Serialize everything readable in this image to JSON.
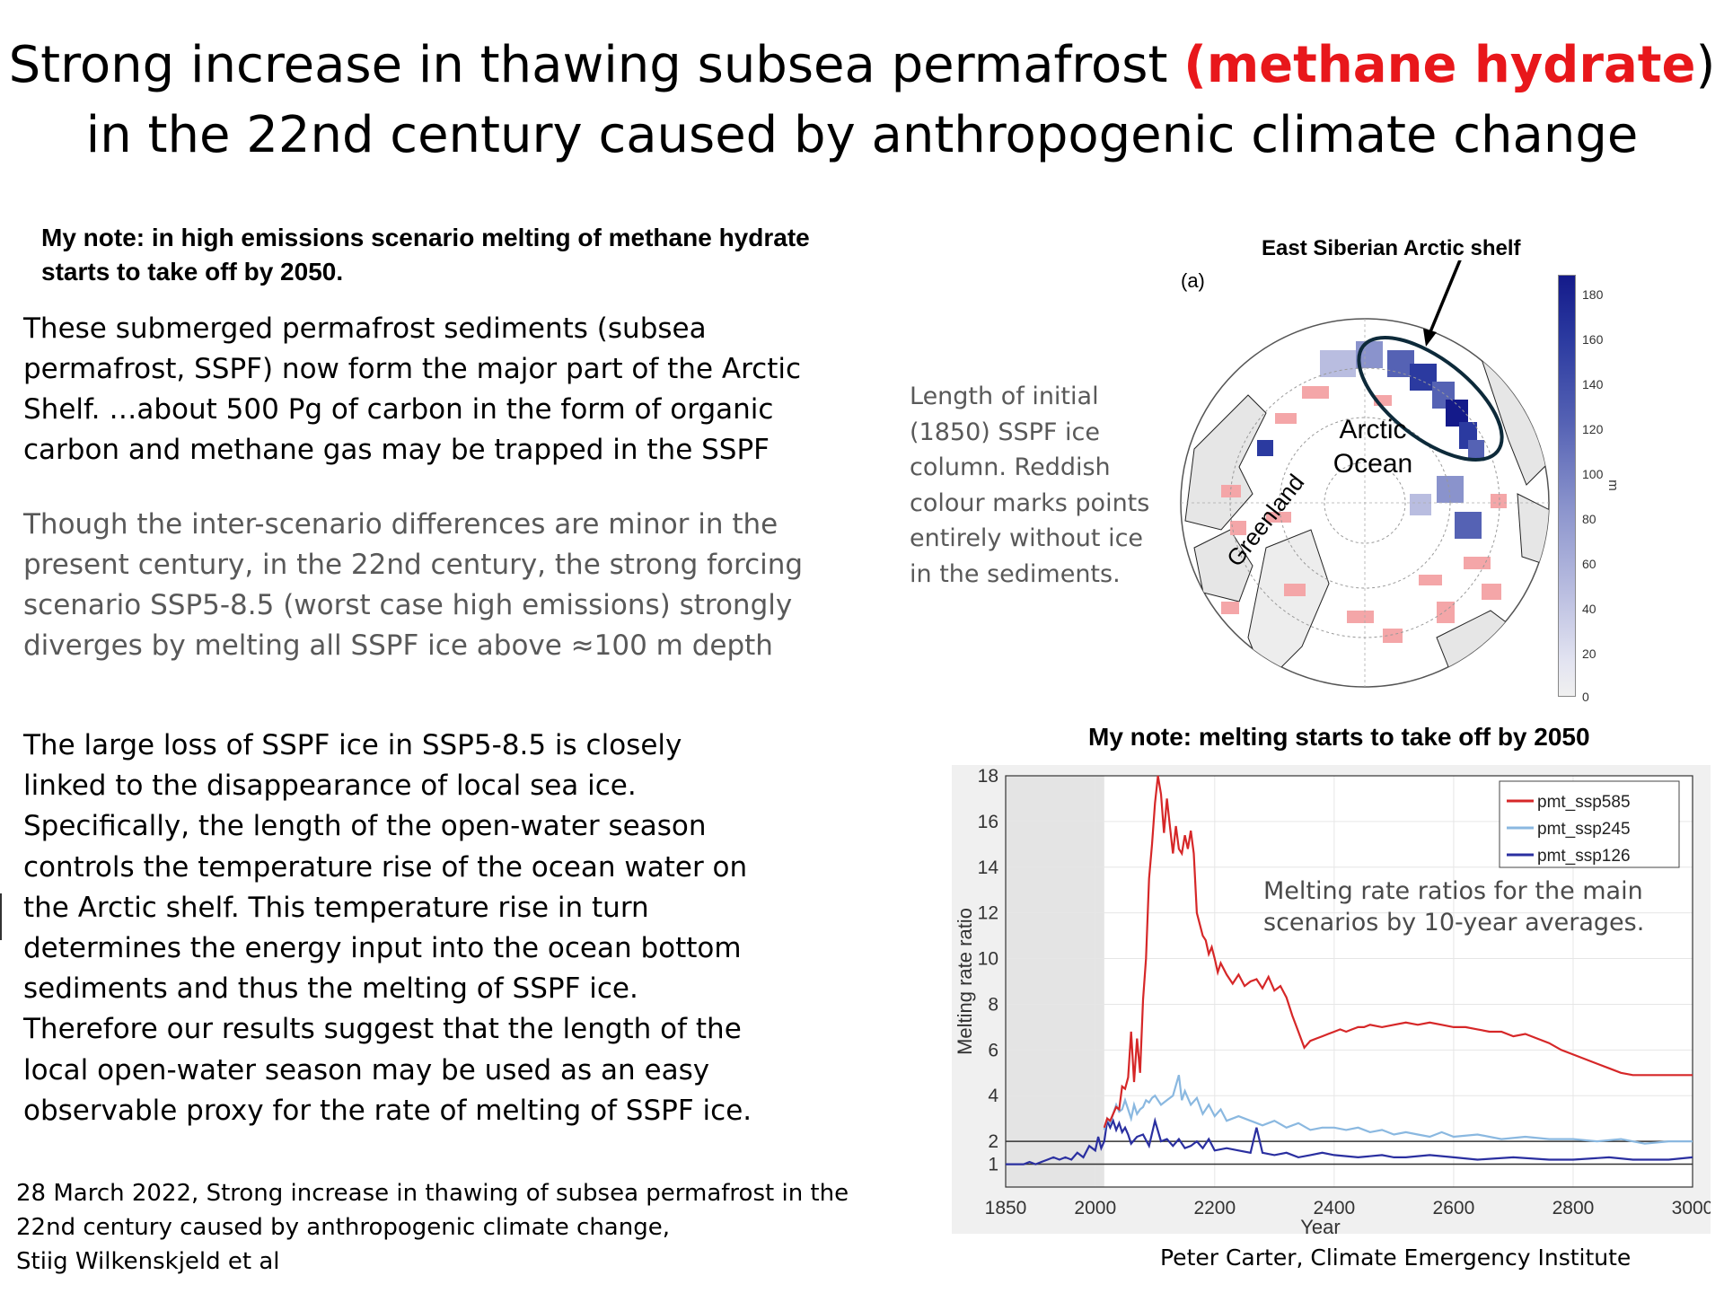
{
  "title": {
    "line1_pre": "Strong increase in thawing subsea permafrost ",
    "line1_highlight": "(methane hydrate",
    "line1_post": ")",
    "line2": "in the 22nd century caused by anthropogenic climate change"
  },
  "notes": {
    "top_note_line1": "My note: in high emissions scenario melting of methane hydrate",
    "top_note_line2": "starts to take off by 2050.",
    "chart_note": "My note: melting starts to take off by 2050"
  },
  "paragraphs": {
    "p1": [
      "These submerged permafrost sediments (subsea",
      "permafrost, SSPF) now form the major part of the Arctic",
      "Shelf. …about 500 Pg of carbon in the form of organic",
      "carbon and methane gas may be trapped in the SSPF"
    ],
    "p2": [
      "Though the inter-scenario differences are minor in the",
      "present century, in the 22nd century, the strong forcing",
      "scenario SSP5-8.5 (worst case high emissions) strongly",
      "diverges by melting all SSPF ice above ≈100 m depth"
    ],
    "p3": [
      "The large loss of SSPF ice in SSP5-8.5 is closely",
      "linked to the disappearance of local sea ice.",
      "Specifically, the length of the open-water season",
      "controls the temperature rise of the ocean water on",
      "the Arctic shelf. This temperature rise in turn",
      "determines the energy input into the ocean bottom",
      "sediments and thus the melting of SSPF ice.",
      "Therefore our results suggest that the length of the",
      "local open-water season may be used as an easy",
      "observable proxy for the rate of melting of SSPF ice."
    ]
  },
  "citation": [
    "28 March 2022, Strong increase in thawing of subsea permafrost in the",
    "22nd century caused by anthropogenic climate change,",
    "Stiig Wilkenskjeld et al"
  ],
  "map": {
    "panel_label": "(a)",
    "callout": "East Siberian Arctic shelf",
    "ocean_label_1": "Arctic",
    "ocean_label_2": "Ocean",
    "greenland": "Greenland",
    "caption": [
      "Length of initial",
      "(1850) SSPF ice",
      "column. Reddish",
      "colour marks points",
      "entirely without ice",
      "in the sediments."
    ],
    "colorbar_ticks": [
      "180",
      "160",
      "140",
      "120",
      "100",
      "80",
      "60",
      "40",
      "20",
      "0"
    ],
    "colorbar_unit": "m",
    "colors": {
      "ice_high": "#141a8a",
      "no_ice": "#f4a6a8",
      "circle_highlight": "#0d2a3a"
    }
  },
  "chart_data": {
    "type": "line",
    "title": "",
    "xlabel": "Year",
    "ylabel": "Melting rate ratio",
    "xlim": [
      1850,
      3000
    ],
    "ylim": [
      0,
      18
    ],
    "xticks": [
      1850,
      2000,
      2200,
      2400,
      2600,
      2800,
      3000
    ],
    "yticks": [
      1,
      2,
      4,
      6,
      8,
      10,
      12,
      14,
      16,
      18
    ],
    "reference_lines": [
      1,
      2
    ],
    "shaded_region": [
      1850,
      2015
    ],
    "annotation": [
      "Melting rate ratios  for the main",
      "scenarios by 10-year averages."
    ],
    "legend_position": "top-right",
    "series": [
      {
        "name": "pmt_ssp585",
        "color": "#d62728",
        "x": [
          2015,
          2020,
          2025,
          2030,
          2035,
          2040,
          2045,
          2050,
          2055,
          2060,
          2065,
          2070,
          2075,
          2080,
          2085,
          2090,
          2095,
          2100,
          2105,
          2110,
          2115,
          2120,
          2125,
          2130,
          2135,
          2140,
          2145,
          2150,
          2155,
          2160,
          2165,
          2170,
          2175,
          2180,
          2185,
          2190,
          2195,
          2200,
          2205,
          2210,
          2220,
          2230,
          2240,
          2250,
          2260,
          2270,
          2280,
          2290,
          2300,
          2310,
          2320,
          2330,
          2340,
          2350,
          2360,
          2370,
          2380,
          2390,
          2400,
          2410,
          2420,
          2430,
          2440,
          2450,
          2460,
          2480,
          2500,
          2520,
          2540,
          2560,
          2580,
          2600,
          2620,
          2640,
          2660,
          2680,
          2700,
          2720,
          2740,
          2760,
          2780,
          2800,
          2820,
          2840,
          2860,
          2880,
          2900,
          2920,
          2940,
          2960,
          2980,
          3000
        ],
        "y": [
          2.6,
          3.0,
          2.9,
          3.2,
          3.5,
          3.4,
          4.4,
          4.3,
          4.8,
          6.8,
          4.6,
          6.5,
          5.0,
          8.2,
          10.0,
          13.5,
          15.0,
          16.8,
          18.0,
          17.2,
          15.5,
          17.0,
          15.8,
          14.6,
          15.8,
          14.8,
          14.6,
          15.4,
          14.8,
          15.6,
          14.6,
          12.0,
          11.5,
          11.0,
          10.8,
          10.2,
          10.5,
          10.0,
          9.4,
          9.8,
          9.3,
          8.9,
          9.3,
          8.8,
          9.0,
          9.1,
          8.7,
          9.2,
          8.6,
          8.8,
          8.3,
          7.5,
          6.8,
          6.1,
          6.4,
          6.5,
          6.6,
          6.7,
          6.8,
          6.9,
          6.8,
          6.9,
          7.0,
          7.0,
          7.1,
          7.0,
          7.1,
          7.2,
          7.1,
          7.2,
          7.1,
          7.0,
          7.0,
          6.9,
          6.8,
          6.8,
          6.6,
          6.7,
          6.5,
          6.3,
          6.0,
          5.8,
          5.6,
          5.4,
          5.2,
          5.0,
          4.9,
          4.9,
          4.9,
          4.9,
          4.9,
          4.9
        ]
      },
      {
        "name": "pmt_ssp245",
        "color": "#8ab8e0",
        "x": [
          2015,
          2020,
          2025,
          2030,
          2035,
          2040,
          2045,
          2050,
          2055,
          2060,
          2065,
          2070,
          2075,
          2080,
          2085,
          2090,
          2095,
          2100,
          2110,
          2120,
          2130,
          2140,
          2145,
          2150,
          2160,
          2170,
          2180,
          2190,
          2200,
          2210,
          2220,
          2240,
          2260,
          2280,
          2300,
          2320,
          2340,
          2360,
          2380,
          2400,
          2420,
          2440,
          2460,
          2480,
          2500,
          2520,
          2540,
          2560,
          2580,
          2600,
          2640,
          2680,
          2720,
          2760,
          2800,
          2840,
          2880,
          2920,
          2960,
          3000
        ],
        "y": [
          2.5,
          3.0,
          2.8,
          3.2,
          3.6,
          3.3,
          3.4,
          3.8,
          3.4,
          3.0,
          3.6,
          3.2,
          3.4,
          3.5,
          3.8,
          3.7,
          3.9,
          4.0,
          3.6,
          3.8,
          4.0,
          4.9,
          3.8,
          4.2,
          3.6,
          3.9,
          3.2,
          3.6,
          3.1,
          3.4,
          2.9,
          3.1,
          2.9,
          2.7,
          2.9,
          2.6,
          2.8,
          2.5,
          2.6,
          2.6,
          2.5,
          2.6,
          2.4,
          2.5,
          2.3,
          2.4,
          2.3,
          2.2,
          2.4,
          2.2,
          2.3,
          2.1,
          2.2,
          2.1,
          2.1,
          2.0,
          2.1,
          1.9,
          2.0,
          2.0
        ]
      },
      {
        "name": "pmt_ssp126",
        "color": "#2a2fa0",
        "x": [
          1850,
          1870,
          1880,
          1890,
          1900,
          1910,
          1920,
          1930,
          1940,
          1950,
          1960,
          1970,
          1980,
          1990,
          2000,
          2005,
          2010,
          2015,
          2020,
          2025,
          2030,
          2035,
          2040,
          2045,
          2050,
          2055,
          2060,
          2070,
          2080,
          2090,
          2100,
          2110,
          2120,
          2130,
          2140,
          2150,
          2160,
          2170,
          2180,
          2190,
          2200,
          2220,
          2240,
          2260,
          2270,
          2280,
          2300,
          2320,
          2340,
          2360,
          2380,
          2400,
          2440,
          2480,
          2500,
          2520,
          2560,
          2600,
          2640,
          2700,
          2760,
          2800,
          2860,
          2900,
          2960,
          3000
        ],
        "y": [
          1.0,
          1.0,
          1.0,
          1.1,
          1.0,
          1.1,
          1.2,
          1.3,
          1.2,
          1.3,
          1.2,
          1.5,
          1.3,
          1.8,
          1.6,
          2.2,
          1.7,
          2.0,
          2.9,
          2.6,
          2.9,
          2.5,
          2.8,
          2.4,
          2.6,
          2.3,
          1.9,
          2.2,
          2.3,
          1.8,
          2.9,
          2.0,
          2.1,
          1.8,
          2.1,
          1.7,
          1.8,
          2.0,
          1.7,
          2.1,
          1.6,
          1.7,
          1.6,
          1.5,
          2.6,
          1.5,
          1.4,
          1.5,
          1.3,
          1.4,
          1.5,
          1.4,
          1.3,
          1.4,
          1.3,
          1.3,
          1.4,
          1.3,
          1.2,
          1.3,
          1.2,
          1.2,
          1.3,
          1.2,
          1.2,
          1.3
        ]
      }
    ]
  },
  "credit": "Peter Carter, Climate Emergency Institute"
}
